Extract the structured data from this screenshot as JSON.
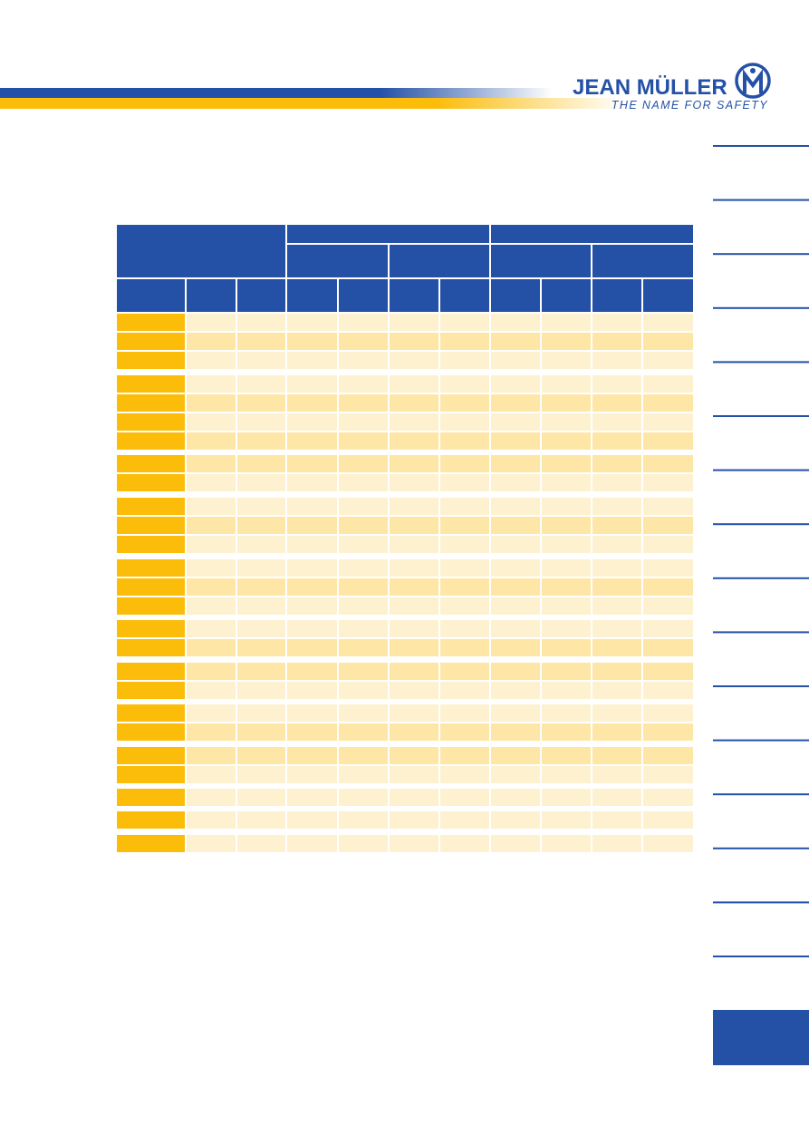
{
  "header": {
    "brand": "JEAN MÜLLER",
    "slogan": "THE NAME FOR SAFETY"
  }
}
